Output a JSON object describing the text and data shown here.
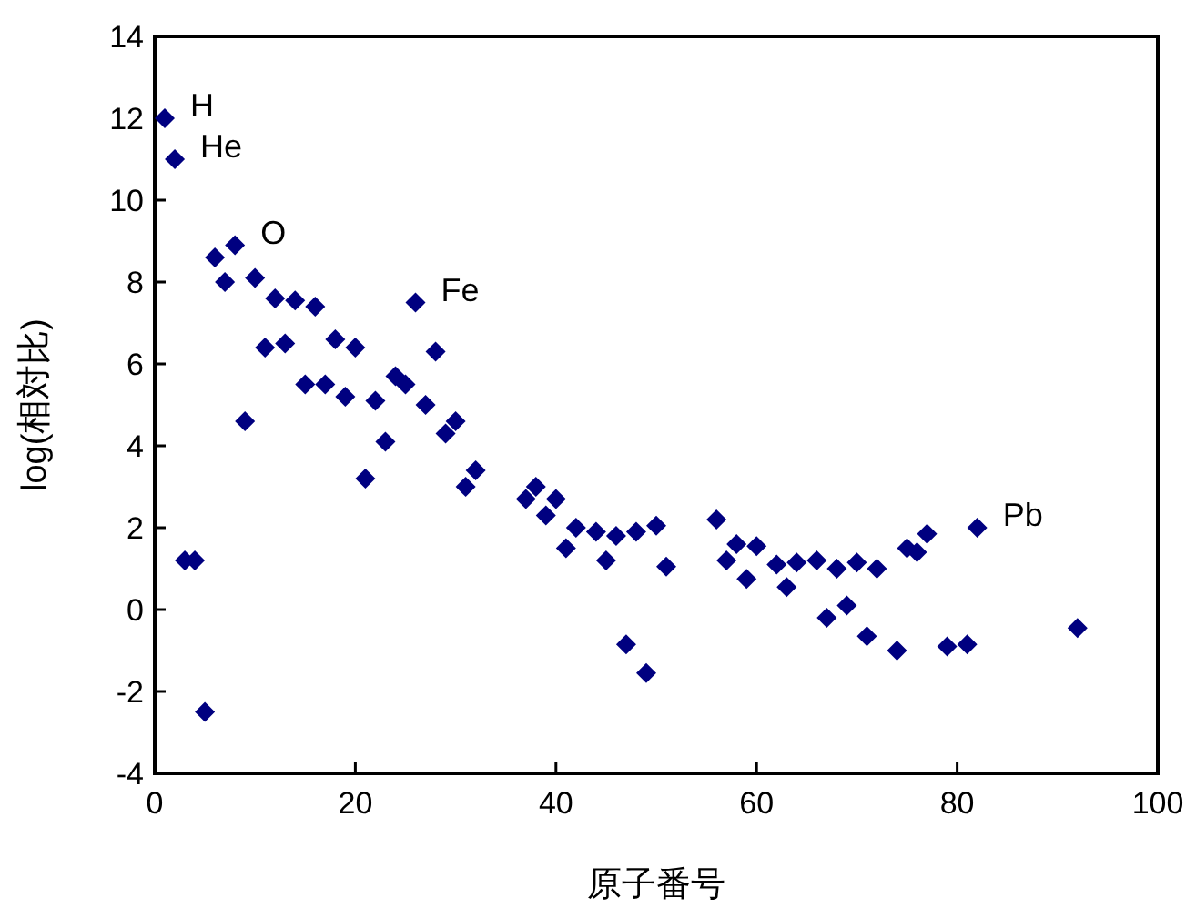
{
  "chart_data": {
    "type": "scatter",
    "xlabel": "原子番号",
    "ylabel": "log(相対比)",
    "marker": "diamond",
    "grid": false,
    "x": [
      1,
      2,
      3,
      4,
      5,
      6,
      7,
      8,
      9,
      10,
      11,
      12,
      13,
      14,
      15,
      16,
      17,
      18,
      19,
      20,
      21,
      22,
      23,
      24,
      25,
      26,
      27,
      28,
      29,
      30,
      31,
      32,
      37,
      38,
      39,
      40,
      41,
      42,
      44,
      45,
      46,
      47,
      48,
      49,
      50,
      51,
      56,
      57,
      58,
      59,
      60,
      62,
      63,
      64,
      66,
      67,
      68,
      69,
      70,
      71,
      72,
      74,
      75,
      76,
      77,
      79,
      81,
      82,
      92
    ],
    "series": [
      {
        "color": "#000080",
        "values": [
          12.0,
          11.0,
          1.2,
          1.2,
          -2.5,
          8.6,
          8.0,
          8.9,
          4.6,
          8.1,
          6.4,
          7.6,
          6.5,
          7.55,
          5.5,
          7.4,
          5.5,
          6.6,
          5.2,
          6.4,
          3.2,
          5.1,
          4.1,
          5.7,
          5.5,
          7.5,
          5.0,
          6.3,
          4.3,
          4.6,
          3.0,
          3.4,
          2.7,
          3.0,
          2.3,
          2.7,
          1.5,
          2.0,
          1.9,
          1.2,
          1.8,
          -0.85,
          1.9,
          -1.55,
          2.05,
          1.05,
          2.2,
          1.2,
          1.6,
          0.75,
          1.55,
          1.1,
          0.55,
          1.15,
          1.2,
          -0.2,
          1.0,
          0.1,
          1.15,
          -0.65,
          1.0,
          -1.0,
          1.5,
          1.4,
          1.85,
          -0.9,
          -0.85,
          2.0,
          -0.45
        ]
      }
    ],
    "xlim": [
      0,
      100
    ],
    "xticks": [
      0,
      20,
      40,
      60,
      80,
      100
    ],
    "ylim": [
      -4,
      14
    ],
    "yticks": [
      -4,
      -2,
      0,
      2,
      4,
      6,
      8,
      10,
      12,
      14
    ],
    "annotations": [
      {
        "text": "H",
        "x": 1,
        "y": 12.0
      },
      {
        "text": "He",
        "x": 2,
        "y": 11.0
      },
      {
        "text": "O",
        "x": 8,
        "y": 8.9
      },
      {
        "text": "Fe",
        "x": 26,
        "y": 7.5
      },
      {
        "text": "Pb",
        "x": 82,
        "y": 2.0
      }
    ]
  }
}
